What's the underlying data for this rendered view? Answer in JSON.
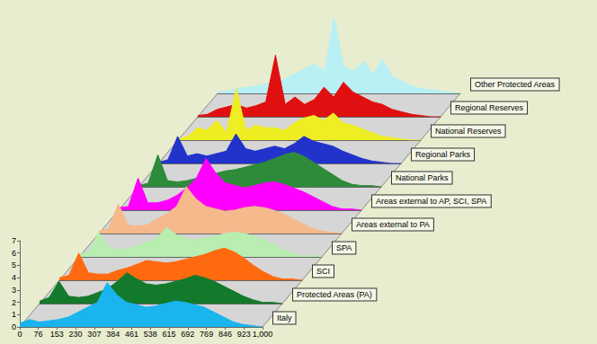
{
  "chart_data": {
    "type": "area",
    "x": [
      0,
      40,
      80,
      120,
      160,
      200,
      240,
      280,
      320,
      360,
      400,
      440,
      480,
      520,
      560,
      600,
      640,
      680,
      720,
      760,
      800,
      840,
      880,
      920,
      960,
      1000
    ],
    "xlim": [
      0,
      1000
    ],
    "xticks": [
      0,
      76,
      153,
      230,
      307,
      384,
      461,
      538,
      615,
      692,
      769,
      846,
      923,
      1000
    ],
    "ylim": [
      0,
      7
    ],
    "yticks": [
      0,
      1,
      2,
      3,
      4,
      5,
      6,
      7
    ],
    "grid": false,
    "series": [
      {
        "name": "Italy",
        "color": "#1ab4ee",
        "values": [
          0.3,
          0.6,
          0.4,
          0.5,
          0.6,
          0.8,
          1.2,
          1.6,
          2.0,
          3.6,
          2.6,
          2.0,
          1.8,
          1.6,
          1.7,
          1.9,
          2.1,
          2.0,
          1.8,
          1.6,
          1.2,
          0.8,
          0.4,
          0.2,
          0.1,
          0
        ]
      },
      {
        "name": "Protected Areas (PA)",
        "color": "#127a2a",
        "values": [
          0.2,
          0.5,
          1.8,
          0.6,
          0.5,
          0.6,
          0.9,
          1.2,
          1.8,
          2.5,
          2.0,
          1.6,
          1.5,
          1.6,
          1.8,
          2.0,
          2.3,
          2.1,
          1.8,
          1.4,
          1.0,
          0.6,
          0.3,
          0.1,
          0.1,
          0
        ]
      },
      {
        "name": "SCI",
        "color": "#ff6a10",
        "values": [
          0.2,
          0.4,
          2.2,
          0.6,
          0.5,
          0.5,
          0.8,
          1.0,
          1.3,
          1.6,
          1.5,
          1.4,
          1.5,
          1.7,
          1.9,
          2.1,
          2.4,
          2.6,
          2.3,
          1.8,
          1.2,
          0.7,
          0.3,
          0.1,
          0.1,
          0
        ]
      },
      {
        "name": "SPA",
        "color": "#b8eeb0",
        "values": [
          0.2,
          0.4,
          2.0,
          0.8,
          0.6,
          0.6,
          0.9,
          1.2,
          1.5,
          2.4,
          1.8,
          1.5,
          1.4,
          1.5,
          1.7,
          1.9,
          2.0,
          1.9,
          1.7,
          1.4,
          1.0,
          0.6,
          0.3,
          0.1,
          0.1,
          0
        ]
      },
      {
        "name": "Areas external to PA",
        "color": "#f5b98c",
        "values": [
          0.2,
          0.4,
          2.4,
          0.7,
          0.6,
          0.7,
          1.2,
          1.6,
          2.2,
          3.8,
          2.8,
          2.2,
          2.0,
          1.8,
          1.9,
          2.1,
          2.2,
          2.1,
          1.9,
          1.6,
          1.2,
          0.8,
          0.4,
          0.2,
          0.1,
          0
        ]
      },
      {
        "name": "Areas external to AP, SCI, SPA",
        "color": "#ff00ff",
        "values": [
          0.2,
          0.3,
          2.6,
          0.6,
          0.6,
          0.8,
          1.2,
          1.8,
          2.6,
          4.2,
          3.0,
          2.2,
          2.0,
          1.8,
          2.0,
          2.2,
          2.3,
          2.1,
          1.8,
          1.5,
          1.1,
          0.7,
          0.3,
          0.1,
          0.1,
          0
        ]
      },
      {
        "name": "National Parks",
        "color": "#2e8b3a",
        "values": [
          0.1,
          0.3,
          2.6,
          0.5,
          0.4,
          0.5,
          0.7,
          0.9,
          1.1,
          1.3,
          1.4,
          1.6,
          1.8,
          2.0,
          2.3,
          2.6,
          2.8,
          2.5,
          2.0,
          1.5,
          1.0,
          0.5,
          0.2,
          0.1,
          0.1,
          0
        ]
      },
      {
        "name": "Regional Parks",
        "color": "#2233cc",
        "values": [
          0.1,
          0.3,
          2.2,
          0.6,
          0.8,
          0.6,
          0.8,
          1.0,
          2.4,
          1.2,
          1.0,
          1.2,
          1.4,
          1.2,
          1.6,
          2.2,
          1.8,
          1.6,
          1.4,
          1.0,
          0.7,
          0.4,
          0.2,
          0.1,
          0,
          0
        ]
      },
      {
        "name": "National Reserves",
        "color": "#eeee22",
        "values": [
          0.1,
          0.3,
          1.0,
          0.8,
          1.6,
          0.6,
          4.2,
          0.8,
          1.2,
          1.0,
          1.0,
          0.8,
          1.4,
          1.8,
          2.0,
          1.6,
          2.2,
          1.4,
          1.2,
          0.9,
          0.6,
          0.3,
          0.2,
          0.1,
          0,
          0
        ]
      },
      {
        "name": "Regional Reserves",
        "color": "#e01010",
        "values": [
          0.1,
          0.2,
          0.6,
          0.8,
          1.0,
          0.7,
          0.9,
          1.2,
          5.0,
          1.0,
          1.6,
          1.0,
          1.4,
          2.4,
          1.6,
          2.8,
          2.0,
          1.6,
          1.2,
          1.0,
          0.6,
          0.4,
          0.2,
          0.1,
          0,
          0
        ]
      },
      {
        "name": "Other Protected Areas",
        "color": "#b8f0f4",
        "values": [
          0.1,
          0.2,
          0.4,
          0.5,
          0.6,
          0.8,
          1.0,
          1.2,
          1.6,
          2.0,
          2.4,
          1.8,
          6.2,
          2.2,
          1.8,
          2.6,
          1.6,
          2.8,
          1.4,
          1.0,
          0.6,
          0.4,
          0.3,
          0.2,
          0.1,
          0
        ]
      }
    ]
  }
}
